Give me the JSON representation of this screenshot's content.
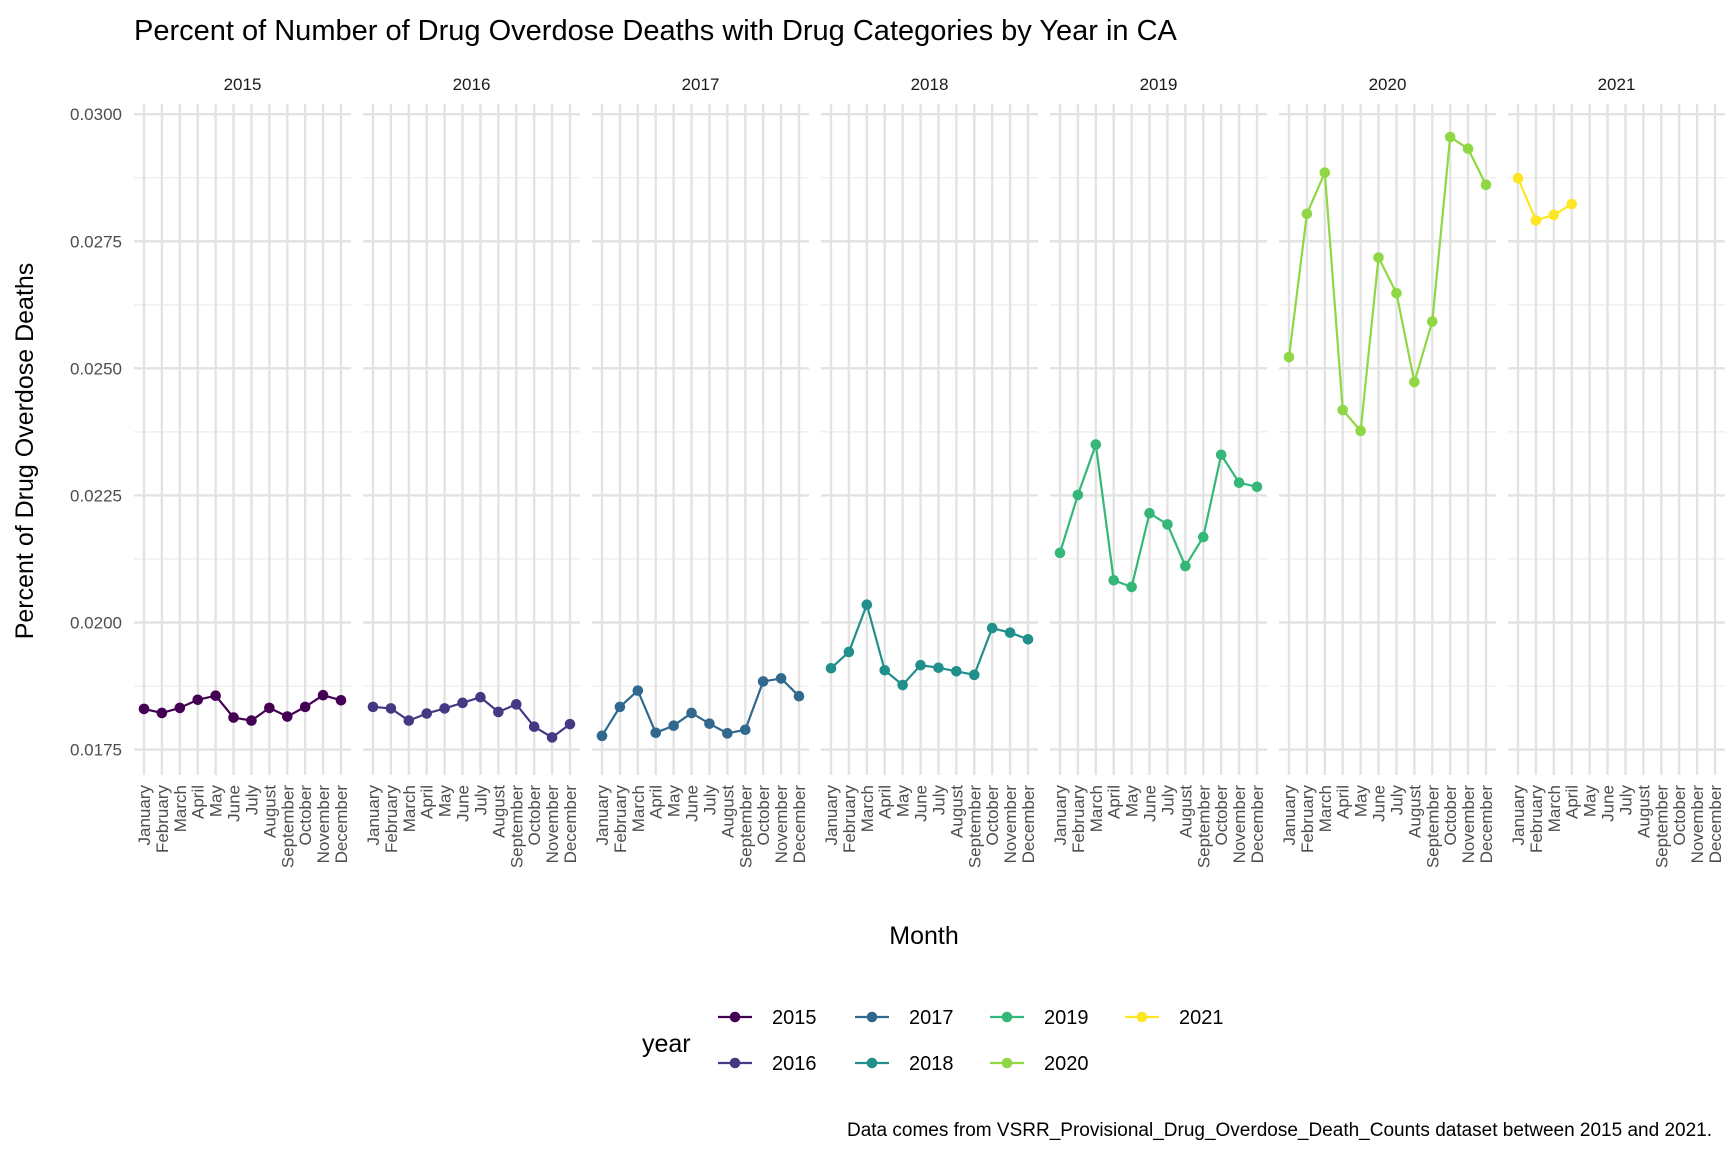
{
  "chart_data": {
    "type": "line",
    "title": "Percent of Number of Drug Overdose Deaths with Drug Categories by Year in CA",
    "xlabel": "Month",
    "ylabel": "Percent of Drug Overdose Deaths",
    "ylim": [
      0.017,
      0.0302
    ],
    "yticks": [
      "0.0175",
      "0.0200",
      "0.0225",
      "0.0250",
      "0.0275",
      "0.0300"
    ],
    "grid": true,
    "legend": {
      "title": "year",
      "position": "bottom"
    },
    "months": [
      "January",
      "February",
      "March",
      "April",
      "May",
      "June",
      "July",
      "August",
      "September",
      "October",
      "November",
      "December"
    ],
    "caption": "Data comes from VSRR_Provisional_Drug_Overdose_Death_Counts dataset between 2015 and 2021.",
    "series": [
      {
        "name": "2015",
        "color": "#440154",
        "values": [
          0.0183,
          0.01822,
          0.01832,
          0.01848,
          0.01856,
          0.01813,
          0.01807,
          0.01832,
          0.01815,
          0.01834,
          0.01857,
          0.01847
        ]
      },
      {
        "name": "2016",
        "color": "#443A83",
        "values": [
          0.01834,
          0.01831,
          0.01807,
          0.01821,
          0.01831,
          0.01842,
          0.01853,
          0.01824,
          0.01839,
          0.01795,
          0.01774,
          0.018
        ]
      },
      {
        "name": "2017",
        "color": "#31688E",
        "values": [
          0.01777,
          0.01834,
          0.01866,
          0.01783,
          0.01797,
          0.01822,
          0.01801,
          0.01782,
          0.01789,
          0.01884,
          0.0189,
          0.01855
        ]
      },
      {
        "name": "2018",
        "color": "#21908C",
        "values": [
          0.0191,
          0.01942,
          0.02035,
          0.01906,
          0.01877,
          0.01916,
          0.01911,
          0.01904,
          0.01897,
          0.01989,
          0.0198,
          0.01967
        ]
      },
      {
        "name": "2019",
        "color": "#35B779",
        "values": [
          0.02137,
          0.02251,
          0.0235,
          0.02083,
          0.0207,
          0.02215,
          0.02193,
          0.02111,
          0.02168,
          0.0233,
          0.02275,
          0.02267
        ]
      },
      {
        "name": "2020",
        "color": "#8FD744",
        "values": [
          0.02522,
          0.02804,
          0.02885,
          0.02418,
          0.02377,
          0.02718,
          0.02648,
          0.02473,
          0.02592,
          0.02955,
          0.02932,
          0.02861
        ]
      },
      {
        "name": "2021",
        "color": "#FDE725",
        "values": [
          0.02874,
          0.02791,
          0.02802,
          0.02823,
          null,
          null,
          null,
          null,
          null,
          null,
          null,
          null
        ]
      }
    ]
  }
}
